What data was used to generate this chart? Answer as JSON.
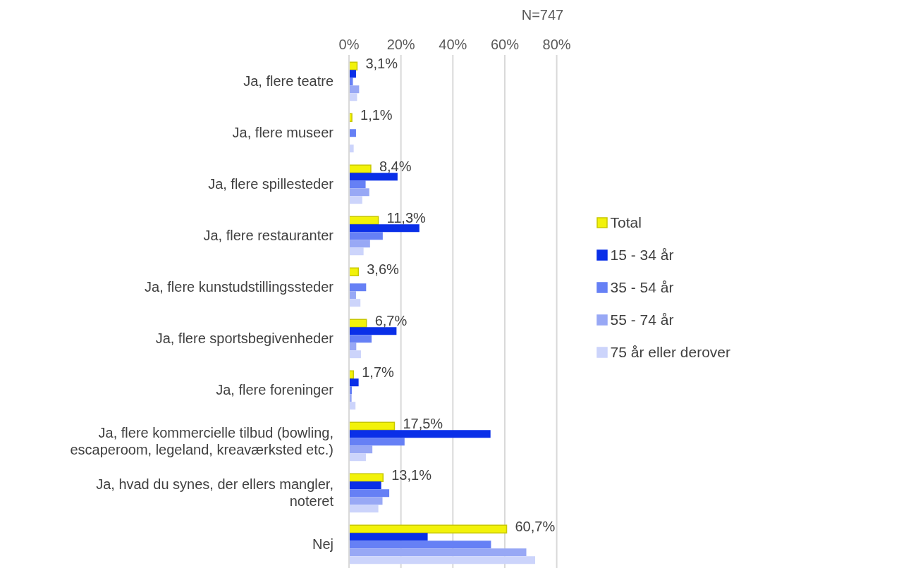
{
  "chart_data": {
    "type": "bar",
    "orientation": "horizontal",
    "title": "N=747",
    "categories": [
      "Ja, flere teatre",
      "Ja, flere museer",
      "Ja, flere spillesteder",
      "Ja, flere restauranter",
      "Ja, flere kunstudstillingssteder",
      "Ja, flere sportsbegivenheder",
      "Ja, flere foreninger",
      "Ja, flere kommercielle tilbud (bowling, escaperoom, legeland, kreaværksted etc.)",
      "Ja, hvad du synes, der ellers mangler, noteret",
      "Nej"
    ],
    "series": [
      {
        "name": "Total",
        "color": "#f2f20a",
        "values": [
          3.1,
          1.1,
          8.4,
          11.3,
          3.6,
          6.7,
          1.7,
          17.5,
          13.1,
          60.7
        ],
        "value_labels": [
          "3,1%",
          "1,1%",
          "8,4%",
          "11,3%",
          "3,6%",
          "6,7%",
          "1,7%",
          "17,5%",
          "13,1%",
          "60,7%"
        ]
      },
      {
        "name": "15 - 34 år",
        "color": "#0a2fe8",
        "values": [
          2.7,
          0,
          18.7,
          27.1,
          0,
          18.3,
          3.7,
          54.5,
          12.4,
          30.3
        ]
      },
      {
        "name": "35 - 54 år",
        "color": "#6680f5",
        "values": [
          1.5,
          2.7,
          6.4,
          13.0,
          6.6,
          8.7,
          1.1,
          21.4,
          15.5,
          54.7
        ]
      },
      {
        "name": "55 - 74 år",
        "color": "#98a8f5",
        "values": [
          3.9,
          0,
          7.8,
          8.1,
          2.7,
          2.8,
          1.0,
          9.0,
          12.9,
          68.3
        ]
      },
      {
        "name": "75 år eller derover",
        "color": "#ccd4fb",
        "values": [
          3.1,
          1.8,
          5.1,
          5.6,
          4.4,
          4.6,
          2.5,
          6.5,
          11.3,
          71.7
        ]
      }
    ],
    "xlim": [
      0,
      80
    ],
    "xticks": [
      {
        "value": 0,
        "label": "0%"
      },
      {
        "value": 20,
        "label": "20%"
      },
      {
        "value": 40,
        "label": "40%"
      },
      {
        "value": 60,
        "label": "60%"
      },
      {
        "value": 80,
        "label": "80%"
      }
    ],
    "grid": "x",
    "legend": "right"
  }
}
